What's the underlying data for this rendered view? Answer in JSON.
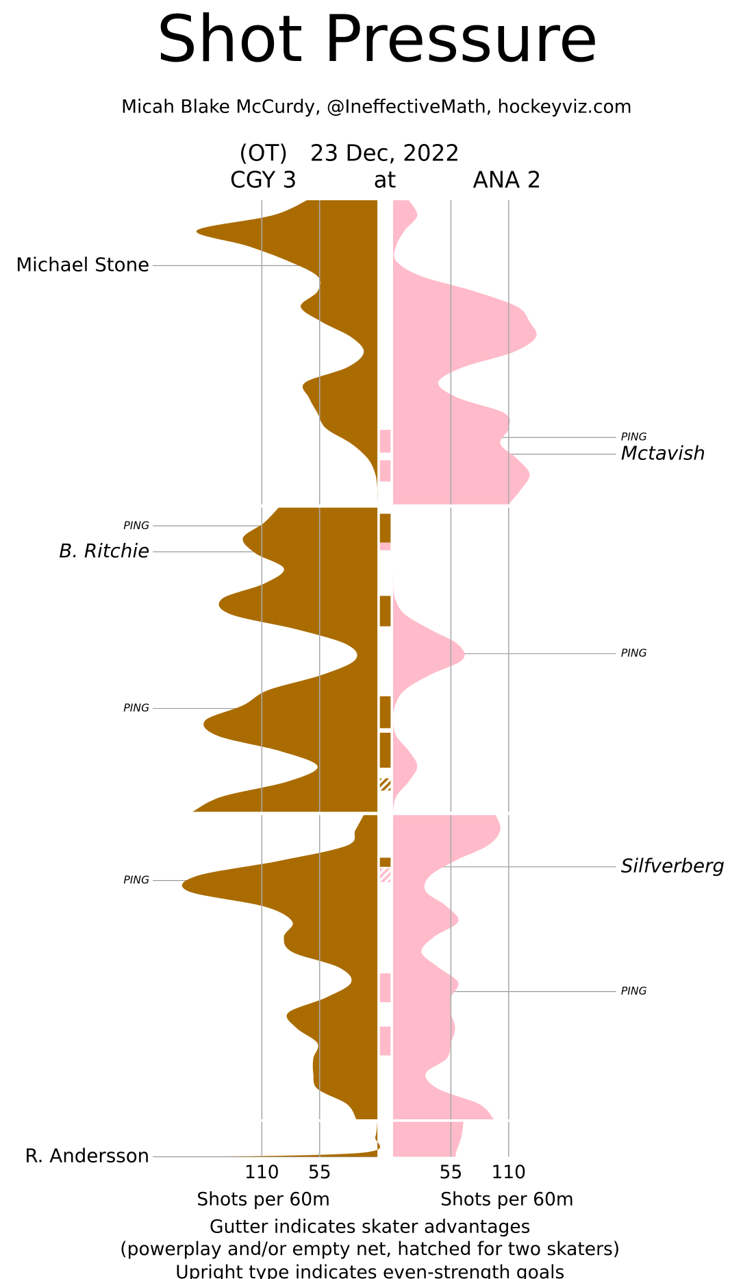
{
  "chart_data": {
    "type": "shot-pressure",
    "title": "Shot Pressure",
    "subtitle": "Micah Blake McCurdy, @IneffectiveMath, hockeyviz.com",
    "game_note": "(OT)",
    "date": "23 Dec, 2022",
    "at": "at",
    "teams": [
      {
        "label": "CGY 3",
        "color": "#aa6c00"
      },
      {
        "label": "ANA 2",
        "color": "#ffbbc9"
      }
    ],
    "axis_label": "Shots per 60m",
    "xlim": [
      0,
      180
    ],
    "xticks": [
      55,
      110
    ],
    "periods": [
      {
        "x": [
          0,
          1,
          2,
          3,
          4,
          5,
          6,
          7,
          8,
          9,
          10,
          11,
          12,
          13,
          14,
          15,
          16,
          17,
          18,
          19,
          20
        ],
        "cgy": [
          67,
          100,
          172,
          124,
          85,
          57,
          57,
          73,
          53,
          25,
          13,
          29,
          69,
          65,
          57,
          49,
          25,
          9,
          2,
          0,
          0
        ],
        "ana": [
          15,
          23,
          11,
          3,
          3,
          27,
          78,
          118,
          130,
          136,
          114,
          66,
          43,
          62,
          106,
          110,
          102,
          118,
          130,
          122,
          110
        ]
      },
      {
        "x": [
          0,
          1,
          2,
          3,
          4,
          5,
          6,
          7,
          8,
          9,
          10,
          11,
          12,
          13,
          14,
          15,
          16,
          17,
          18,
          19,
          20
        ],
        "cgy": [
          94,
          108,
          128,
          116,
          89,
          108,
          148,
          140,
          77,
          29,
          21,
          53,
          104,
          128,
          164,
          152,
          93,
          57,
          85,
          148,
          176
        ],
        "ana": [
          0,
          0,
          0,
          0,
          0,
          0,
          2,
          11,
          35,
          62,
          66,
          35,
          11,
          2,
          0,
          3,
          15,
          23,
          15,
          3,
          0
        ]
      },
      {
        "x": [
          0,
          1,
          2,
          3,
          4,
          5,
          6,
          7,
          8,
          9,
          10,
          11,
          12,
          13,
          14,
          15,
          16,
          17,
          18,
          19,
          20
        ],
        "cgy": [
          13,
          21,
          29,
          93,
          172,
          180,
          108,
          81,
          89,
          81,
          37,
          25,
          49,
          85,
          77,
          57,
          61,
          61,
          57,
          29,
          20
        ],
        "ana": [
          98,
          102,
          90,
          59,
          35,
          31,
          51,
          62,
          39,
          27,
          43,
          62,
          55,
          55,
          59,
          55,
          51,
          31,
          43,
          82,
          96
        ]
      },
      {
        "x": [
          0,
          1,
          2,
          2.3
        ],
        "cgy": [
          0,
          2,
          10,
          144
        ],
        "ana": [
          67,
          65,
          60,
          60
        ]
      }
    ],
    "advantages": [
      {
        "period": 0,
        "team": 1,
        "start": 15.1,
        "end": 16.6,
        "hatched": false
      },
      {
        "period": 0,
        "team": 1,
        "start": 17.1,
        "end": 18.5,
        "hatched": false
      },
      {
        "period": 1,
        "team": 0,
        "start": 0.4,
        "end": 2.3,
        "hatched": false
      },
      {
        "period": 1,
        "team": 1,
        "start": 2.3,
        "end": 2.8,
        "hatched": false
      },
      {
        "period": 1,
        "team": 0,
        "start": 5.8,
        "end": 7.8,
        "hatched": false
      },
      {
        "period": 1,
        "team": 0,
        "start": 12.4,
        "end": 14.5,
        "hatched": false
      },
      {
        "period": 1,
        "team": 0,
        "start": 14.8,
        "end": 17.1,
        "hatched": false
      },
      {
        "period": 1,
        "team": 0,
        "start": 17.8,
        "end": 18.6,
        "hatched": true
      },
      {
        "period": 2,
        "team": 0,
        "start": 2.8,
        "end": 3.4,
        "hatched": false
      },
      {
        "period": 2,
        "team": 1,
        "start": 3.5,
        "end": 4.4,
        "hatched": true
      },
      {
        "period": 2,
        "team": 1,
        "start": 10.4,
        "end": 12.3,
        "hatched": false
      },
      {
        "period": 2,
        "team": 1,
        "start": 13.9,
        "end": 15.8,
        "hatched": false
      }
    ],
    "goals": [
      {
        "label": "Michael Stone",
        "period": 0,
        "time": 4.3,
        "team": 0,
        "style": "even"
      },
      {
        "label": "PING",
        "period": 0,
        "time": 15.6,
        "team": 1,
        "style": "ping"
      },
      {
        "label": "Mctavish",
        "period": 0,
        "time": 16.7,
        "team": 1,
        "style": "special"
      },
      {
        "label": "PING",
        "period": 1,
        "time": 1.2,
        "team": 0,
        "style": "ping"
      },
      {
        "label": "B. Ritchie",
        "period": 1,
        "time": 2.9,
        "team": 0,
        "style": "special"
      },
      {
        "label": "PING",
        "period": 1,
        "time": 9.6,
        "team": 1,
        "style": "ping"
      },
      {
        "label": "PING",
        "period": 1,
        "time": 13.2,
        "team": 0,
        "style": "ping"
      },
      {
        "label": "Silfverberg",
        "period": 2,
        "time": 3.4,
        "team": 1,
        "style": "special"
      },
      {
        "label": "PING",
        "period": 2,
        "time": 4.3,
        "team": 0,
        "style": "ping"
      },
      {
        "label": "PING",
        "period": 2,
        "time": 11.6,
        "team": 1,
        "style": "ping"
      },
      {
        "label": "R. Andersson",
        "period": 3,
        "time": 2.3,
        "team": 0,
        "style": "even"
      }
    ],
    "notes": [
      "Gutter indicates skater advantages",
      "(powerplay and/or empty net, hatched for two skaters)",
      "Upright type indicates even-strength goals"
    ]
  }
}
